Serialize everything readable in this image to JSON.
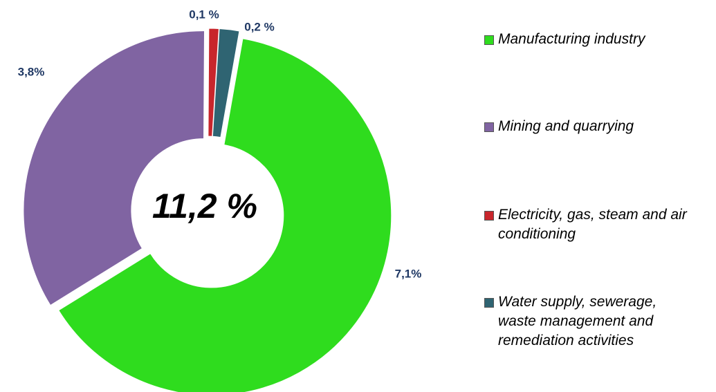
{
  "chart_data": {
    "type": "donut",
    "categories": [
      "Manufacturing industry",
      "Mining and quarrying",
      "Electricity, gas, steam and air conditioning",
      "Water supply, sewerage, waste management and remediation activities"
    ],
    "values": [
      7.1,
      3.8,
      0.1,
      0.2
    ],
    "value_labels": [
      "7,1%",
      "3,8%",
      "0,1 %",
      "0,2 %"
    ],
    "colors": [
      "#2fdc1e",
      "#8064a2",
      "#c8262c",
      "#2f6472"
    ],
    "center_label": "11,2 %",
    "legend": "right"
  }
}
